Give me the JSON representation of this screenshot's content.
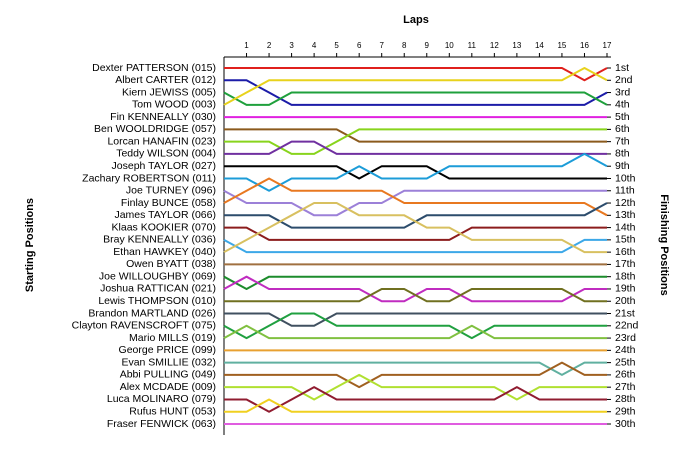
{
  "chart_data": {
    "type": "line",
    "title": "Laps",
    "y_label": "Starting Positions",
    "y2_label": "Finishing Positions",
    "x": [
      0,
      1,
      2,
      3,
      4,
      5,
      6,
      7,
      8,
      9,
      10,
      11,
      12,
      13,
      14,
      15,
      16,
      17
    ],
    "xlim": [
      0,
      17
    ],
    "xticks": [
      1,
      2,
      3,
      4,
      5,
      6,
      7,
      8,
      9,
      10,
      11,
      12,
      13,
      14,
      15,
      16,
      17
    ],
    "ylim": [
      1,
      30
    ],
    "y2lim": [
      1,
      30
    ],
    "y2ticks": [
      {
        "value": 1,
        "label": "1st"
      },
      {
        "value": 2,
        "label": "2nd"
      },
      {
        "value": 3,
        "label": "3rd"
      },
      {
        "value": 4,
        "label": "4th"
      },
      {
        "value": 5,
        "label": "5th"
      },
      {
        "value": 6,
        "label": "6th"
      },
      {
        "value": 7,
        "label": "7th"
      },
      {
        "value": 8,
        "label": "8th"
      },
      {
        "value": 9,
        "label": "9th"
      },
      {
        "value": 10,
        "label": "10th"
      },
      {
        "value": 11,
        "label": "11th"
      },
      {
        "value": 12,
        "label": "12th"
      },
      {
        "value": 13,
        "label": "13th"
      },
      {
        "value": 14,
        "label": "14th"
      },
      {
        "value": 15,
        "label": "15th"
      },
      {
        "value": 16,
        "label": "16th"
      },
      {
        "value": 17,
        "label": "17th"
      },
      {
        "value": 18,
        "label": "18th"
      },
      {
        "value": 19,
        "label": "19th"
      },
      {
        "value": 20,
        "label": "20th"
      },
      {
        "value": 21,
        "label": "21st"
      },
      {
        "value": 22,
        "label": "22nd"
      },
      {
        "value": 23,
        "label": "23rd"
      },
      {
        "value": 24,
        "label": "24th"
      },
      {
        "value": 25,
        "label": "25th"
      },
      {
        "value": 26,
        "label": "26th"
      },
      {
        "value": 27,
        "label": "27th"
      },
      {
        "value": 28,
        "label": "28th"
      },
      {
        "value": 29,
        "label": "29th"
      },
      {
        "value": 30,
        "label": "30th"
      }
    ],
    "series": [
      {
        "name": "Dexter PATTERSON (015)",
        "color": "#e0201c",
        "values": [
          1,
          1,
          1,
          1,
          1,
          1,
          1,
          1,
          1,
          1,
          1,
          1,
          1,
          1,
          1,
          1,
          2,
          1
        ]
      },
      {
        "name": "Albert CARTER (012)",
        "color": "#1c1ca8",
        "values": [
          2,
          2,
          3,
          4,
          4,
          4,
          4,
          4,
          4,
          4,
          4,
          4,
          4,
          4,
          4,
          4,
          4,
          3
        ]
      },
      {
        "name": "Kiern JEWISS (005)",
        "color": "#1fa03c",
        "values": [
          3,
          4,
          4,
          3,
          3,
          3,
          3,
          3,
          3,
          3,
          3,
          3,
          3,
          3,
          3,
          3,
          3,
          4
        ]
      },
      {
        "name": "Tom WOOD (003)",
        "color": "#e8d21c",
        "values": [
          4,
          3,
          2,
          2,
          2,
          2,
          2,
          2,
          2,
          2,
          2,
          2,
          2,
          2,
          2,
          2,
          1,
          2
        ]
      },
      {
        "name": "Fin KENNEALLY (030)",
        "color": "#e020e0",
        "values": [
          5,
          5,
          5,
          5,
          5,
          5,
          5,
          5,
          5,
          5,
          5,
          5,
          5,
          5,
          5,
          5,
          5,
          5
        ]
      },
      {
        "name": "Ben WOOLDRIDGE (057)",
        "color": "#8b5a1c",
        "values": [
          6,
          6,
          6,
          6,
          6,
          6,
          7,
          7,
          7,
          7,
          7,
          7,
          7,
          7,
          7,
          7,
          7,
          7
        ]
      },
      {
        "name": "Lorcan HANAFIN (023)",
        "color": "#88d41c",
        "values": [
          7,
          7,
          7,
          8,
          8,
          7,
          6,
          6,
          6,
          6,
          6,
          6,
          6,
          6,
          6,
          6,
          6,
          6
        ]
      },
      {
        "name": "Teddy WILSON (004)",
        "color": "#7030a0",
        "values": [
          8,
          8,
          8,
          7,
          7,
          8,
          8,
          8,
          8,
          8,
          8,
          8,
          8,
          8,
          8,
          8,
          8,
          8
        ]
      },
      {
        "name": "Joseph TAYLOR (027)",
        "color": "#000000",
        "values": [
          9,
          9,
          9,
          9,
          9,
          9,
          10,
          9,
          9,
          9,
          10,
          10,
          10,
          10,
          10,
          10,
          10,
          10
        ]
      },
      {
        "name": "Zachary ROBERTSON (011)",
        "color": "#1c9cd8",
        "values": [
          10,
          10,
          11,
          10,
          10,
          10,
          9,
          10,
          10,
          10,
          9,
          9,
          9,
          9,
          9,
          9,
          8,
          9
        ]
      },
      {
        "name": "Joe TURNEY (096)",
        "color": "#9c80d8",
        "values": [
          11,
          12,
          12,
          12,
          13,
          13,
          12,
          12,
          11,
          11,
          11,
          11,
          11,
          11,
          11,
          11,
          11,
          11
        ]
      },
      {
        "name": "Finlay BUNCE (058)",
        "color": "#e87820",
        "values": [
          12,
          11,
          10,
          11,
          11,
          11,
          11,
          11,
          12,
          12,
          12,
          12,
          12,
          12,
          12,
          12,
          12,
          13
        ]
      },
      {
        "name": "James TAYLOR (066)",
        "color": "#2c4c6c",
        "values": [
          13,
          13,
          13,
          14,
          14,
          14,
          14,
          14,
          14,
          13,
          13,
          13,
          13,
          13,
          13,
          13,
          13,
          12
        ]
      },
      {
        "name": "Klaas KOOKIER (070)",
        "color": "#8c1c1c",
        "values": [
          14,
          14,
          15,
          15,
          15,
          15,
          15,
          15,
          15,
          15,
          15,
          14,
          14,
          14,
          14,
          14,
          14,
          14
        ]
      },
      {
        "name": "Bray KENNEALLY (036)",
        "color": "#3ca8e8",
        "values": [
          15,
          16,
          16,
          16,
          16,
          16,
          16,
          16,
          16,
          16,
          16,
          16,
          16,
          16,
          16,
          16,
          15,
          15
        ]
      },
      {
        "name": "Ethan HAWKEY (040)",
        "color": "#d8c060",
        "values": [
          16,
          15,
          14,
          13,
          12,
          12,
          13,
          13,
          13,
          14,
          14,
          15,
          15,
          15,
          15,
          15,
          16,
          16
        ]
      },
      {
        "name": "Owen BYATT (038)",
        "color": "#a07040",
        "values": [
          17,
          17,
          17,
          17,
          17,
          17,
          17,
          17,
          17,
          17,
          17,
          17,
          17,
          17,
          17,
          17,
          17,
          17
        ]
      },
      {
        "name": "Joe WILLOUGHBY (069)",
        "color": "#1c8c2c",
        "values": [
          18,
          19,
          18,
          18,
          18,
          18,
          18,
          18,
          18,
          18,
          18,
          18,
          18,
          18,
          18,
          18,
          18,
          18
        ]
      },
      {
        "name": "Joshua RATTICAN (021)",
        "color": "#c02cc0",
        "values": [
          19,
          18,
          19,
          19,
          19,
          19,
          19,
          20,
          20,
          19,
          19,
          20,
          20,
          20,
          20,
          20,
          19,
          19
        ]
      },
      {
        "name": "Lewis THOMPSON (010)",
        "color": "#707020",
        "values": [
          20,
          20,
          20,
          20,
          20,
          20,
          20,
          19,
          19,
          20,
          20,
          19,
          19,
          19,
          19,
          19,
          20,
          20
        ]
      },
      {
        "name": "Brandon MARTLAND (026)",
        "color": "#405060",
        "values": [
          21,
          21,
          21,
          22,
          22,
          21,
          21,
          21,
          21,
          21,
          21,
          21,
          21,
          21,
          21,
          21,
          21,
          21
        ]
      },
      {
        "name": "Clayton RAVENSCROFT (075)",
        "color": "#20a040",
        "values": [
          22,
          23,
          22,
          21,
          21,
          22,
          22,
          22,
          22,
          22,
          22,
          23,
          22,
          22,
          22,
          22,
          22,
          22
        ]
      },
      {
        "name": "Mario MILLS (019)",
        "color": "#80c040",
        "values": [
          23,
          22,
          23,
          23,
          23,
          23,
          23,
          23,
          23,
          23,
          23,
          22,
          23,
          23,
          23,
          23,
          23,
          23
        ]
      },
      {
        "name": "George PRICE (099)",
        "color": "#e8a030",
        "values": [
          24,
          24,
          24,
          24,
          24,
          24,
          24,
          24,
          24,
          24,
          24,
          24,
          24,
          24,
          24,
          24,
          24,
          24
        ]
      },
      {
        "name": "Evan SMILLIE (032)",
        "color": "#60b0a0",
        "values": [
          25,
          25,
          25,
          25,
          25,
          25,
          25,
          25,
          25,
          25,
          25,
          25,
          25,
          25,
          25,
          26,
          25,
          25
        ]
      },
      {
        "name": "Abbi PULLING (049)",
        "color": "#a06020",
        "values": [
          26,
          26,
          26,
          26,
          26,
          26,
          27,
          26,
          26,
          26,
          26,
          26,
          26,
          26,
          26,
          25,
          26,
          26
        ]
      },
      {
        "name": "Alex MCDADE (009)",
        "color": "#b0e030",
        "values": [
          27,
          27,
          27,
          27,
          28,
          27,
          26,
          27,
          27,
          27,
          27,
          27,
          27,
          28,
          27,
          27,
          27,
          27
        ]
      },
      {
        "name": "Luca MOLINARO (079)",
        "color": "#901c30",
        "values": [
          28,
          28,
          29,
          28,
          27,
          28,
          28,
          28,
          28,
          28,
          28,
          28,
          28,
          27,
          28,
          28,
          28,
          28
        ]
      },
      {
        "name": "Rufus HUNT (053)",
        "color": "#f0d020",
        "values": [
          29,
          29,
          28,
          29,
          29,
          29,
          29,
          29,
          29,
          29,
          29,
          29,
          29,
          29,
          29,
          29,
          29,
          29
        ]
      },
      {
        "name": "Fraser FENWICK (063)",
        "color": "#e05ce0",
        "values": [
          30,
          30,
          30,
          30,
          30,
          30,
          30,
          30,
          30,
          30,
          30,
          30,
          30,
          30,
          30,
          30,
          30,
          30
        ]
      }
    ]
  }
}
